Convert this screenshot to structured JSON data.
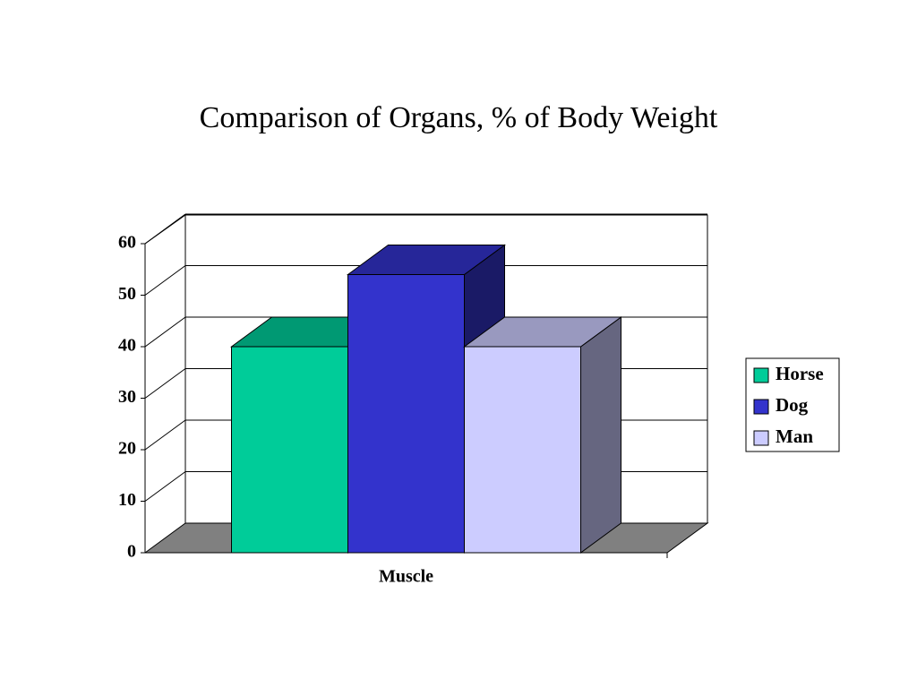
{
  "chart_data": {
    "type": "bar3d",
    "title": "Comparison of Organs, % of Body Weight",
    "categories": [
      "Muscle"
    ],
    "series": [
      {
        "name": "Horse",
        "color": "#00cc99",
        "values": [
          40
        ]
      },
      {
        "name": "Dog",
        "color": "#3333cc",
        "values": [
          54
        ]
      },
      {
        "name": "Man",
        "color": "#ccccff",
        "values": [
          40
        ]
      }
    ],
    "ylim": [
      0,
      60
    ],
    "yticks": [
      0,
      10,
      20,
      30,
      40,
      50,
      60
    ],
    "grid": true,
    "legend": "right"
  }
}
